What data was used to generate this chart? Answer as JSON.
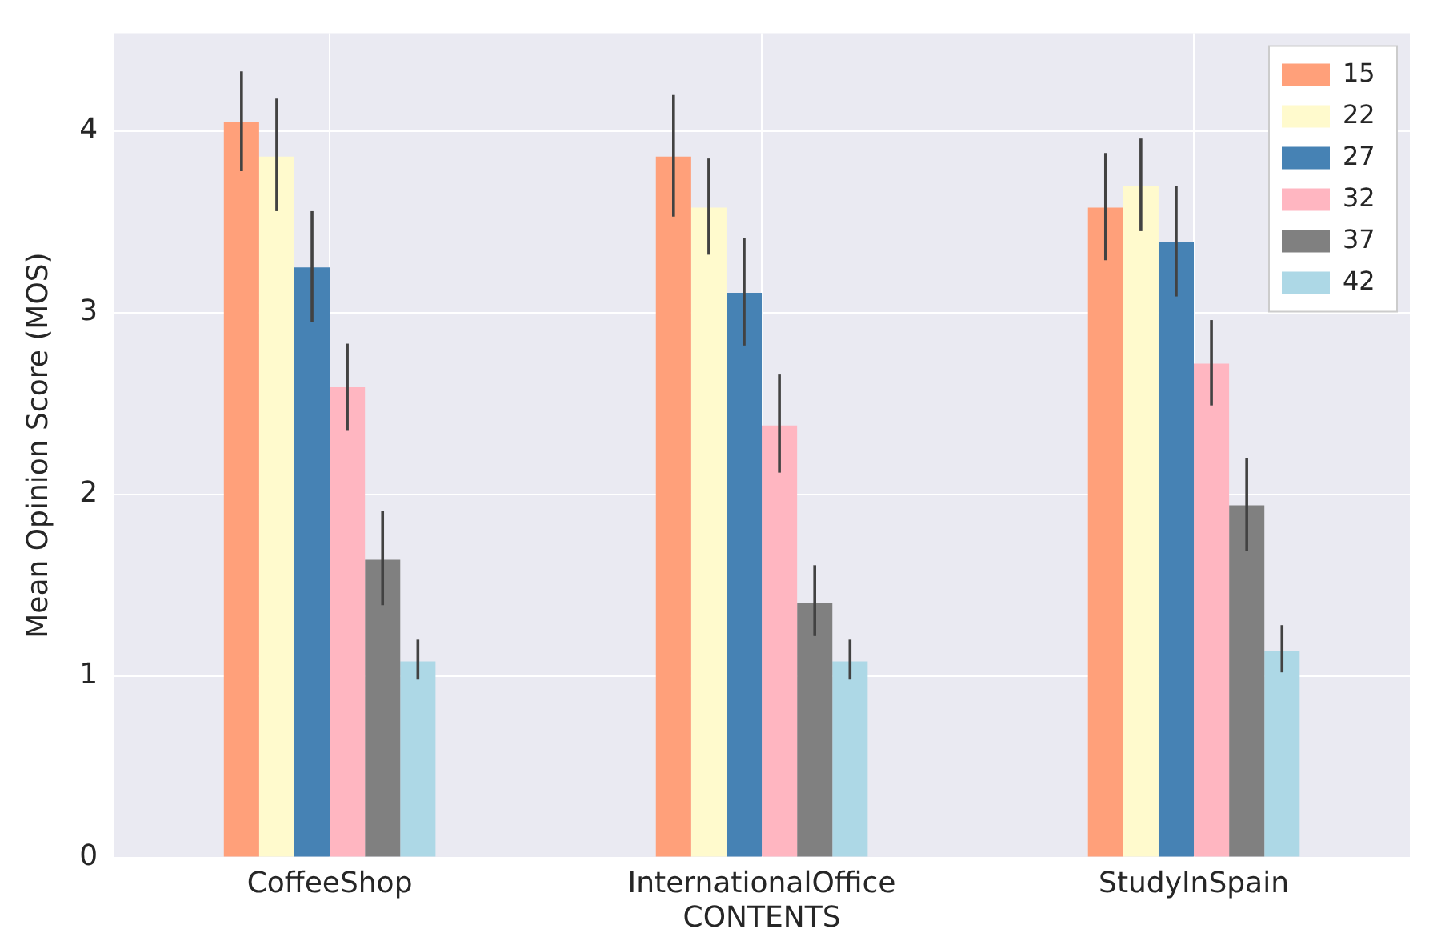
{
  "chart_data": {
    "type": "bar",
    "xlabel": "CONTENTS",
    "ylabel": "Mean Opinion Score (MOS)",
    "categories": [
      "CoffeeShop",
      "InternationalOffice",
      "StudyInSpain"
    ],
    "series": [
      {
        "name": "15",
        "color": "#ffa07a",
        "values": [
          4.05,
          3.86,
          3.58
        ],
        "errors": [
          [
            3.78,
            4.33
          ],
          [
            3.53,
            4.2
          ],
          [
            3.29,
            3.88
          ]
        ]
      },
      {
        "name": "22",
        "color": "#fffacd",
        "values": [
          3.86,
          3.58,
          3.7
        ],
        "errors": [
          [
            3.56,
            4.18
          ],
          [
            3.32,
            3.85
          ],
          [
            3.45,
            3.96
          ]
        ]
      },
      {
        "name": "27",
        "color": "#4682b4",
        "values": [
          3.25,
          3.11,
          3.39
        ],
        "errors": [
          [
            2.95,
            3.56
          ],
          [
            2.82,
            3.41
          ],
          [
            3.09,
            3.7
          ]
        ]
      },
      {
        "name": "32",
        "color": "#ffb6c1",
        "values": [
          2.59,
          2.38,
          2.72
        ],
        "errors": [
          [
            2.35,
            2.83
          ],
          [
            2.12,
            2.66
          ],
          [
            2.49,
            2.96
          ]
        ]
      },
      {
        "name": "37",
        "color": "#808080",
        "values": [
          1.64,
          1.4,
          1.94
        ],
        "errors": [
          [
            1.39,
            1.91
          ],
          [
            1.22,
            1.61
          ],
          [
            1.69,
            2.2
          ]
        ]
      },
      {
        "name": "42",
        "color": "#add8e6",
        "values": [
          1.08,
          1.08,
          1.14
        ],
        "errors": [
          [
            0.98,
            1.2
          ],
          [
            0.98,
            1.2
          ],
          [
            1.02,
            1.28
          ]
        ]
      }
    ],
    "ylim": [
      0,
      4.54
    ],
    "yticks": [
      0,
      1,
      2,
      3,
      4
    ],
    "grid": true,
    "legend": "top right"
  }
}
